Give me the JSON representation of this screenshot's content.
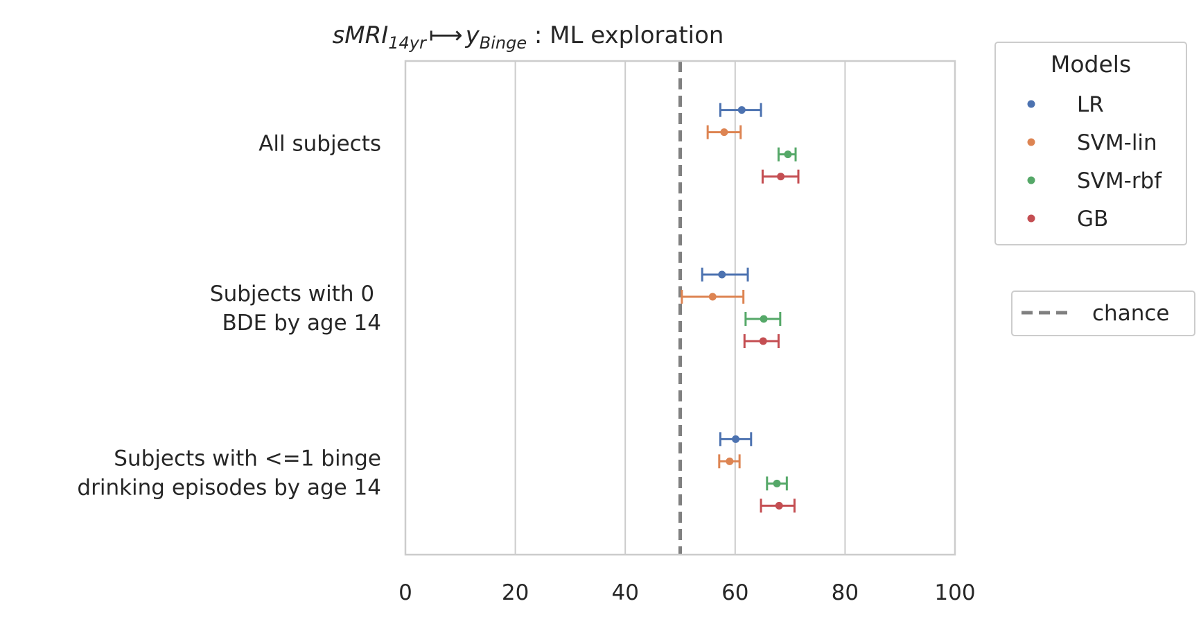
{
  "chart_data": {
    "type": "scatter",
    "title": {
      "math_part1": "sMRI",
      "math_sub1": "14yr",
      "arrow": "⟼",
      "math_part2": "y",
      "math_sub2": "Binge",
      "rest": " : ML exploration"
    },
    "xlim": [
      0,
      100
    ],
    "xticks": [
      0,
      20,
      40,
      60,
      80,
      100
    ],
    "grid": true,
    "categories": [
      [
        "All subjects"
      ],
      [
        "Subjects with 0 ",
        "BDE by age 14"
      ],
      [
        "Subjects with <=1 binge",
        "drinking episodes by age 14"
      ]
    ],
    "series": [
      {
        "name": "LR",
        "color": "#4c72b0",
        "values": [
          61.2,
          57.6,
          60.1
        ],
        "err_low": [
          57.3,
          54.0,
          57.3
        ],
        "err_high": [
          64.7,
          62.3,
          62.9
        ]
      },
      {
        "name": "SVM-lin",
        "color": "#dd8452",
        "values": [
          58.0,
          55.9,
          59.0
        ],
        "err_low": [
          55.0,
          50.3,
          57.1
        ],
        "err_high": [
          61.0,
          61.5,
          60.8
        ]
      },
      {
        "name": "SVM-rbf",
        "color": "#55a868",
        "values": [
          69.6,
          65.2,
          67.6
        ],
        "err_low": [
          67.9,
          61.9,
          65.8
        ],
        "err_high": [
          71.0,
          68.2,
          69.4
        ]
      },
      {
        "name": "GB",
        "color": "#c44e52",
        "values": [
          68.3,
          65.1,
          68.0
        ],
        "err_low": [
          65.0,
          61.7,
          64.7
        ],
        "err_high": [
          71.5,
          67.9,
          70.8
        ]
      }
    ],
    "reference_line": {
      "label": "chance",
      "x": 50,
      "color": "#808080"
    },
    "legend": {
      "title": "Models",
      "placement": "outside-right"
    }
  }
}
